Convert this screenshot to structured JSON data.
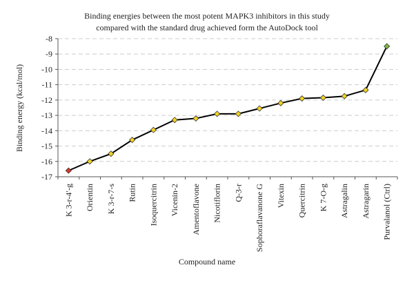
{
  "chart_data": {
    "type": "line",
    "title_lines": [
      "Binding energies between the most potent MAPK3 inhibitors in this study",
      "compared with the standard drug achieved form the AutoDock tool"
    ],
    "xlabel": "Compound name",
    "ylabel": "Binding energy (kcal/mol)",
    "ylim": [
      -17,
      -8
    ],
    "yticks": [
      -8,
      -9,
      -10,
      -11,
      -12,
      -13,
      -14,
      -15,
      -16,
      -17
    ],
    "grid": "horizontal dashed",
    "categories": [
      "K 3-r-4′-g",
      "Orientin",
      "K 3-r-7-s",
      "Rutin",
      "Isoquercitrin",
      "Vicenin-2",
      "Amentoflavone",
      "Nicotiflorin",
      "Q-3-r",
      "Sophoraflavanone G",
      "Vitexin",
      "Quercitrin",
      "K 7-O-g",
      "Astragalin",
      "Astragarin",
      "Purvalanol (Ctrl)"
    ],
    "values": [
      -16.6,
      -16.0,
      -15.5,
      -14.6,
      -13.95,
      -13.3,
      -13.2,
      -12.9,
      -12.9,
      -12.55,
      -12.2,
      -11.9,
      -11.85,
      -11.75,
      -11.35,
      -8.5
    ],
    "marker_colors": {
      "first": "#d9362b",
      "middle": "#f2d222",
      "last": "#7ab541"
    },
    "line_color": "#000000",
    "grid_color": "#cccccc"
  }
}
